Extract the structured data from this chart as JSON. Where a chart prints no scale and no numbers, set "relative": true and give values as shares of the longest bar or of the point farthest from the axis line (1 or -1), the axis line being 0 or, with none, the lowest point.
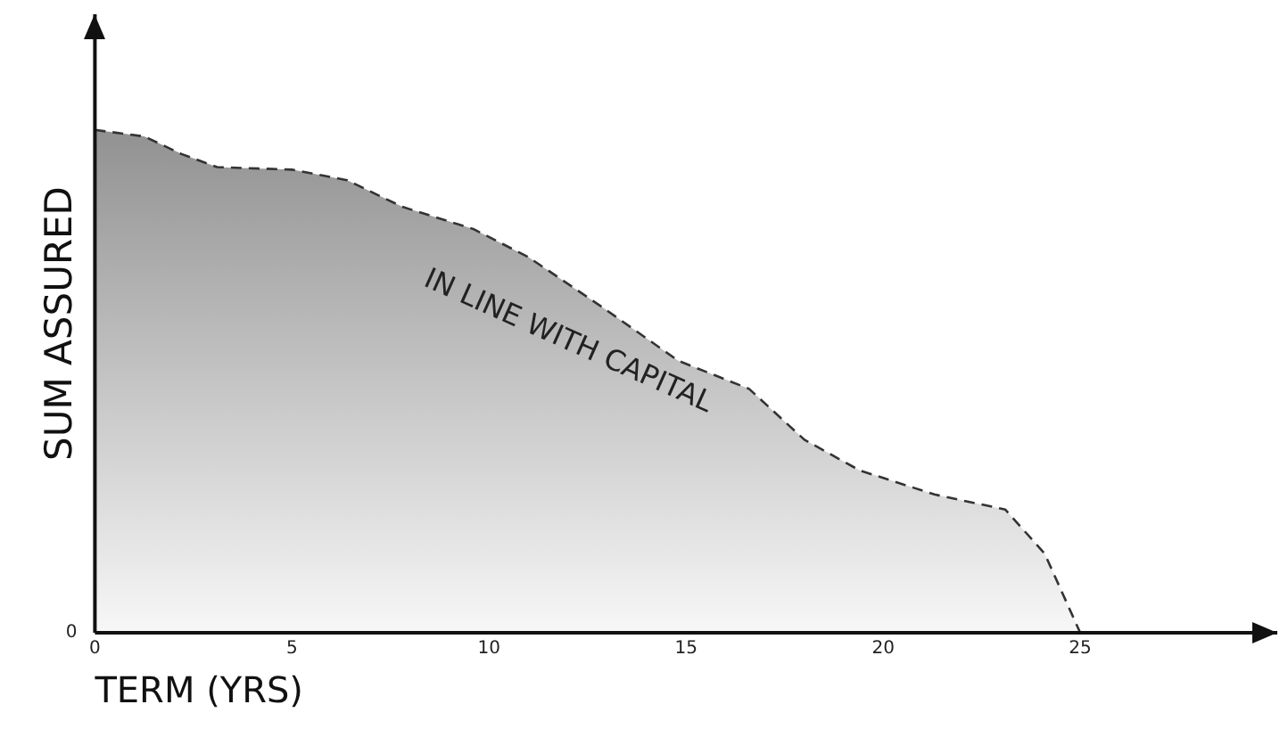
{
  "chart_data": {
    "type": "area",
    "relative": true,
    "xlabel": "TERM (YRS)",
    "ylabel": "SUM ASSURED",
    "line_style": "dashed",
    "grid": false,
    "legend": false,
    "x": [
      0,
      1.25,
      2.2,
      3.1,
      5,
      6.4,
      7.8,
      9.6,
      11,
      12.9,
      14.8,
      16.6,
      18,
      19.4,
      21.3,
      23.1,
      24.1,
      25
    ],
    "series": [
      {
        "color": "#7a7a7a",
        "values": [
          1,
          0.987,
          0.952,
          0.926,
          0.921,
          0.9,
          0.847,
          0.803,
          0.747,
          0.646,
          0.541,
          0.485,
          0.384,
          0.323,
          0.275,
          0.245,
          0.157,
          0
        ]
      }
    ],
    "xlim": [
      0,
      30
    ],
    "xticks": [
      0,
      5,
      10,
      15,
      20,
      25
    ],
    "annotations": [
      "IN LINE WITH CAPITAL",
      "0"
    ]
  }
}
